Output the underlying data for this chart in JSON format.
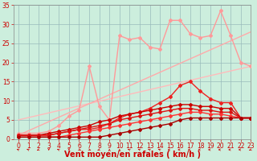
{
  "title": "",
  "xlabel": "Vent moyen/en rafales ( km/h )",
  "ylabel": "",
  "xlim": [
    -0.5,
    23
  ],
  "ylim": [
    0,
    35
  ],
  "yticks": [
    0,
    5,
    10,
    15,
    20,
    25,
    30,
    35
  ],
  "xticks": [
    0,
    1,
    2,
    3,
    4,
    5,
    6,
    7,
    8,
    9,
    10,
    11,
    12,
    13,
    14,
    15,
    16,
    17,
    18,
    19,
    20,
    21,
    22,
    23
  ],
  "bg_color": "#cceedd",
  "grid_color": "#99bbbb",
  "series": [
    {
      "x": [
        0,
        23
      ],
      "y": [
        5.0,
        19.0
      ],
      "color": "#ffbbbb",
      "lw": 1.0,
      "marker": null,
      "ms": 0
    },
    {
      "x": [
        0,
        23
      ],
      "y": [
        1.0,
        28.0
      ],
      "color": "#ffaaaa",
      "lw": 1.0,
      "marker": null,
      "ms": 0
    },
    {
      "x": [
        0,
        1,
        2,
        3,
        4,
        5,
        6,
        7,
        8,
        9,
        10,
        11,
        12,
        13,
        14,
        15,
        16,
        17,
        18,
        19,
        20,
        21,
        22,
        23
      ],
      "y": [
        1.5,
        1.5,
        1.5,
        2.0,
        3.5,
        6.0,
        7.5,
        19.0,
        8.5,
        5.0,
        27.0,
        26.0,
        26.5,
        24.0,
        23.5,
        31.0,
        31.0,
        27.5,
        26.5,
        27.0,
        33.5,
        27.0,
        20.0,
        19.0
      ],
      "color": "#ff9999",
      "lw": 1.0,
      "marker": "D",
      "ms": 2
    },
    {
      "x": [
        0,
        1,
        2,
        3,
        4,
        5,
        6,
        7,
        8,
        9,
        10,
        11,
        12,
        13,
        14,
        15,
        16,
        17,
        18,
        19,
        20,
        21,
        22,
        23
      ],
      "y": [
        1.0,
        1.0,
        1.0,
        1.0,
        1.5,
        2.0,
        2.5,
        2.5,
        3.0,
        4.0,
        5.5,
        6.5,
        7.0,
        8.0,
        9.5,
        11.0,
        14.0,
        15.0,
        12.5,
        10.5,
        9.5,
        9.5,
        5.5,
        5.5
      ],
      "color": "#ee2222",
      "lw": 1.0,
      "marker": "D",
      "ms": 2
    },
    {
      "x": [
        0,
        1,
        2,
        3,
        4,
        5,
        6,
        7,
        8,
        9,
        10,
        11,
        12,
        13,
        14,
        15,
        16,
        17,
        18,
        19,
        20,
        21,
        22,
        23
      ],
      "y": [
        1.0,
        1.0,
        1.0,
        1.5,
        2.0,
        2.5,
        3.0,
        3.5,
        4.5,
        5.0,
        6.0,
        6.5,
        7.0,
        7.5,
        8.0,
        8.5,
        9.0,
        9.0,
        8.5,
        8.5,
        8.0,
        8.0,
        5.5,
        5.5
      ],
      "color": "#cc0000",
      "lw": 1.0,
      "marker": "D",
      "ms": 2
    },
    {
      "x": [
        0,
        1,
        2,
        3,
        4,
        5,
        6,
        7,
        8,
        9,
        10,
        11,
        12,
        13,
        14,
        15,
        16,
        17,
        18,
        19,
        20,
        21,
        22,
        23
      ],
      "y": [
        1.0,
        1.0,
        1.0,
        1.0,
        1.5,
        2.0,
        2.5,
        3.0,
        3.5,
        4.0,
        5.0,
        5.5,
        6.0,
        6.5,
        7.0,
        7.5,
        8.0,
        8.0,
        7.5,
        7.5,
        7.0,
        7.0,
        5.5,
        5.5
      ],
      "color": "#dd1111",
      "lw": 1.0,
      "marker": "D",
      "ms": 2
    },
    {
      "x": [
        0,
        1,
        2,
        3,
        4,
        5,
        6,
        7,
        8,
        9,
        10,
        11,
        12,
        13,
        14,
        15,
        16,
        17,
        18,
        19,
        20,
        21,
        22,
        23
      ],
      "y": [
        0.5,
        0.5,
        0.5,
        0.5,
        0.5,
        1.0,
        1.5,
        2.0,
        2.5,
        3.0,
        3.5,
        4.0,
        4.5,
        5.0,
        5.5,
        6.0,
        6.5,
        7.0,
        7.0,
        6.5,
        6.5,
        6.0,
        5.5,
        5.5
      ],
      "color": "#ff3333",
      "lw": 1.0,
      "marker": "D",
      "ms": 2
    },
    {
      "x": [
        0,
        1,
        2,
        3,
        4,
        5,
        6,
        7,
        8,
        9,
        10,
        11,
        12,
        13,
        14,
        15,
        16,
        17,
        18,
        19,
        20,
        21,
        22,
        23
      ],
      "y": [
        0.5,
        0.5,
        0.5,
        0.5,
        0.5,
        0.5,
        0.5,
        0.5,
        0.5,
        1.0,
        1.5,
        2.0,
        2.5,
        3.0,
        3.5,
        4.0,
        5.0,
        5.5,
        5.5,
        5.5,
        5.5,
        5.5,
        5.5,
        5.5
      ],
      "color": "#aa0000",
      "lw": 1.0,
      "marker": "D",
      "ms": 2
    }
  ],
  "font_color": "#cc0000",
  "tick_fontsize": 5.5,
  "label_fontsize": 7
}
